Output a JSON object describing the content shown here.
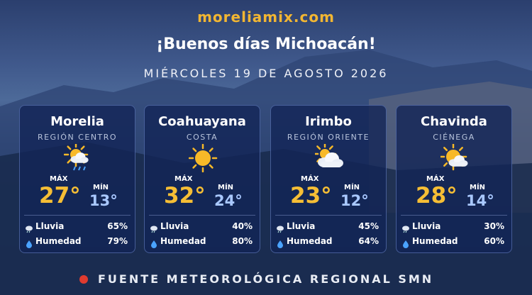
{
  "header": {
    "site": "moreliamix.com",
    "greeting": "¡Buenos días Michoacán!",
    "date": "MIÉRCOLES 19 DE AGOSTO 2026"
  },
  "cards": [
    {
      "city": "Morelia",
      "region": "REGIÓN CENTRO",
      "max_label": "MÁX",
      "max": "27°",
      "min_label": "MÍN",
      "min": "13°",
      "rain_label": "Lluvia",
      "rain": "65%",
      "humidity_label": "Humedad",
      "humidity": "79%"
    },
    {
      "city": "Coahuayana",
      "region": "COSTA",
      "max_label": "MÁX",
      "max": "32°",
      "min_label": "MÍN",
      "min": "24°",
      "rain_label": "Lluvia",
      "rain": "40%",
      "humidity_label": "Humedad",
      "humidity": "80%"
    },
    {
      "city": "Irimbo",
      "region": "REGIÓN ORIENTE",
      "max_label": "MÁX",
      "max": "23°",
      "min_label": "MÍN",
      "min": "12°",
      "rain_label": "Lluvia",
      "rain": "45%",
      "humidity_label": "Humedad",
      "humidity": "64%"
    },
    {
      "city": "Chavinda",
      "region": "CIÉNEGA",
      "max_label": "MÁX",
      "max": "28°",
      "min_label": "MÍN",
      "min": "14°",
      "rain_label": "Lluvia",
      "rain": "30%",
      "humidity_label": "Humedad",
      "humidity": "60%"
    }
  ],
  "footer": "FUENTE METEOROLÓGICA REGIONAL SMN"
}
